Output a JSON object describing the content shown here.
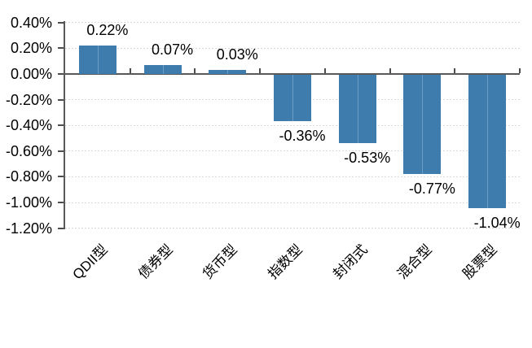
{
  "chart_data": {
    "type": "bar",
    "title": "",
    "xlabel": "",
    "ylabel": "",
    "categories": [
      "QDII型",
      "债券型",
      "货币型",
      "指数型",
      "封闭式",
      "混合型",
      "股票型"
    ],
    "values": [
      0.22,
      0.07,
      0.03,
      -0.36,
      -0.53,
      -0.77,
      -1.04
    ],
    "data_labels": [
      "0.22%",
      "0.07%",
      "0.03%",
      "-0.36%",
      "-0.53%",
      "-0.77%",
      "-1.04%"
    ],
    "ylim": [
      -1.2,
      0.4
    ],
    "ytick_step": 0.2,
    "yticks": [
      0.4,
      0.2,
      0.0,
      -0.2,
      -0.4,
      -0.6,
      -0.8,
      -1.0,
      -1.2
    ],
    "ytick_labels": [
      "0.40%",
      "0.20%",
      "0.00%",
      "-0.20%",
      "-0.40%",
      "-0.60%",
      "-0.80%",
      "-1.00%",
      "-1.20%"
    ],
    "grid": "horizontal-dotted",
    "legend_position": "none",
    "category_label_rotation_deg": 45,
    "colors": {
      "bar": "#3E7CAE",
      "bar_center_line": "#6C9DC6",
      "axis": "#595959",
      "tick": "#4D4D4D",
      "gridline": "#D9D9D9",
      "text": "#000000",
      "background": "#FFFFFF"
    }
  }
}
